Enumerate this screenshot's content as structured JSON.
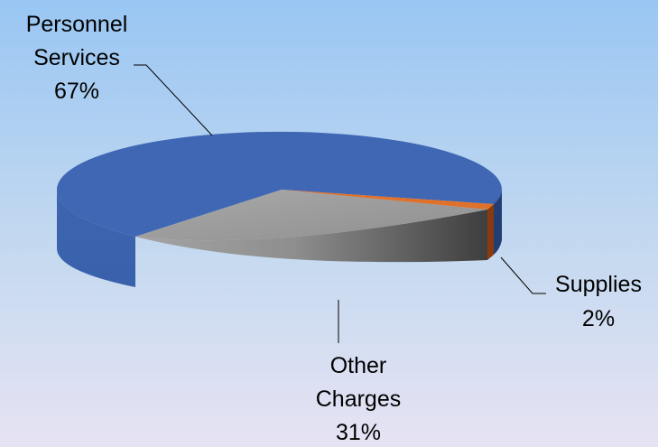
{
  "chart_data": {
    "type": "pie",
    "style": "3d",
    "title": "",
    "series": [
      {
        "label_lines": [
          "Personnel",
          "Services"
        ],
        "pct_label": "67%",
        "value": 67,
        "color": "#3f67b3"
      },
      {
        "label_lines": [
          "Supplies"
        ],
        "pct_label": "2%",
        "value": 2,
        "color": "#e0712a"
      },
      {
        "label_lines": [
          "Other",
          "Charges"
        ],
        "pct_label": "31%",
        "value": 31,
        "color": "#a5a5a5"
      }
    ],
    "legend": "none",
    "data_labels": "outside with leader lines"
  }
}
